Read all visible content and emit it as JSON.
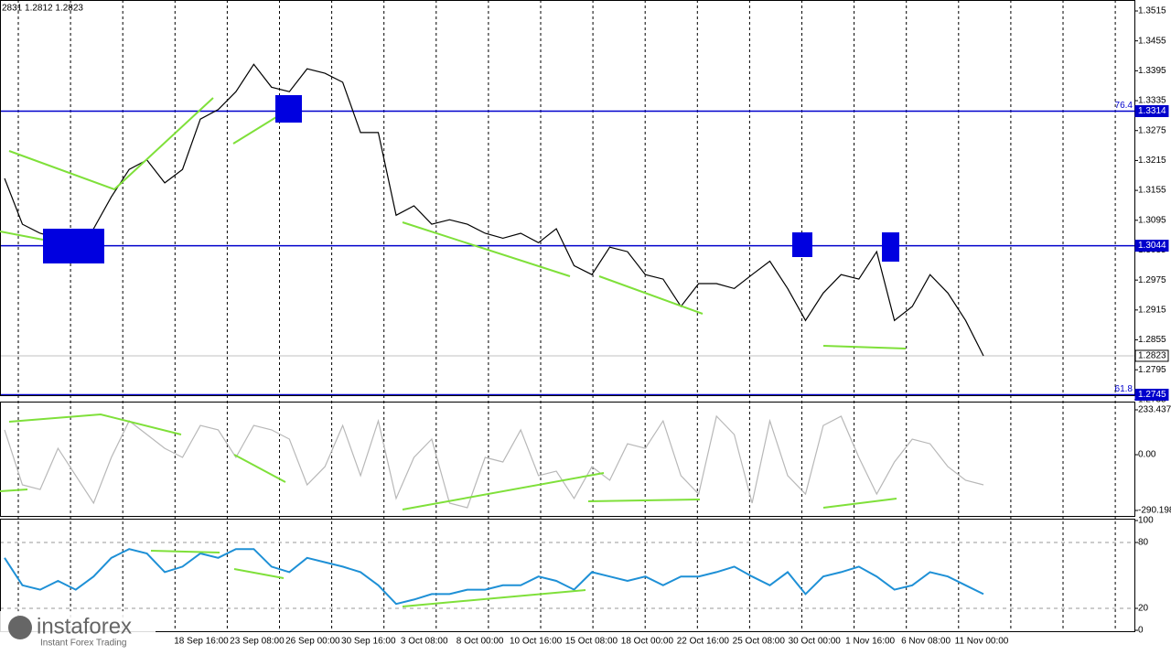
{
  "header_text": "2831 1.2812 1.2823",
  "watermark": {
    "brand": "instaforex",
    "tagline": "Instant Forex Trading"
  },
  "time_labels": [
    "18 Sep 16:00",
    "23 Sep 08:00",
    "26 Sep 00:00",
    "30 Sep 16:00",
    "3 Oct 08:00",
    "8 Oct 00:00",
    "10 Oct 16:00",
    "15 Oct 08:00",
    "18 Oct 00:00",
    "22 Oct 16:00",
    "25 Oct 08:00",
    "30 Oct 00:00",
    "1 Nov 16:00",
    "6 Nov 08:00",
    "11 Nov 00:00"
  ],
  "chart_data": [
    {
      "type": "line",
      "color": "#000000",
      "values": [
        1.3179,
        1.3087,
        1.3069,
        1.3059,
        1.3041,
        1.3078,
        1.3142,
        1.3197,
        1.3216,
        1.317,
        1.3197,
        1.3298,
        1.3317,
        1.3353,
        1.3408,
        1.3362,
        1.3353,
        1.3399,
        1.339,
        1.3372,
        1.3271,
        1.3271,
        1.3105,
        1.3124,
        1.3087,
        1.3096,
        1.3087,
        1.3069,
        1.3059,
        1.3069,
        1.305,
        1.3078,
        1.3004,
        1.2986,
        1.3041,
        1.3032,
        1.2986,
        1.2977,
        1.2922,
        1.2968,
        1.2968,
        1.2958,
        1.2986,
        1.3013,
        1.2958,
        1.2894,
        1.2949,
        1.2986,
        1.2977,
        1.3032,
        1.2894,
        1.2922,
        1.2986,
        1.2949,
        1.2894,
        1.2823
      ],
      "ylim": [
        1.2744,
        1.3537
      ],
      "yticks": [
        1.3515,
        1.3455,
        1.3395,
        1.3335,
        1.3275,
        1.3215,
        1.3155,
        1.3095,
        1.3035,
        1.2975,
        1.2915,
        1.2855,
        1.2795,
        1.2735
      ],
      "levels": [
        {
          "value": 1.3314,
          "label": "76.4",
          "color": "#0000cc"
        },
        {
          "value": 1.3044,
          "color": "#0000cc"
        },
        {
          "value": 1.2745,
          "label": "61.8",
          "color": "#0000cc"
        },
        {
          "value": 1.2823,
          "color": "#c0c0c0"
        }
      ]
    },
    {
      "type": "line",
      "color": "#b8b8b8",
      "values": [
        129,
        -157,
        -181,
        33,
        -109,
        -252,
        -14,
        176,
        105,
        33,
        -14,
        152,
        129,
        -14,
        152,
        129,
        81,
        -157,
        -62,
        152,
        -109,
        176,
        -228,
        -14,
        81,
        -252,
        -276,
        -14,
        -38,
        129,
        -109,
        -86,
        -228,
        -62,
        -133,
        57,
        33,
        176,
        -109,
        -205,
        200,
        105,
        -252,
        176,
        -109,
        -205,
        152,
        200,
        -14,
        -205,
        -38,
        81,
        57,
        -62,
        -133,
        -157
      ],
      "ylim": [
        -323.5,
        271.5
      ],
      "yticks": [
        233.4378,
        {
          "value": 0,
          "label": "0.00"
        },
        -290.1986
      ]
    },
    {
      "type": "line",
      "color": "#1e90d6",
      "values": [
        66,
        41,
        37,
        45,
        37,
        49,
        66,
        74,
        70,
        53,
        58,
        70,
        66,
        74,
        74,
        58,
        53,
        66,
        62,
        58,
        53,
        41,
        24,
        28,
        33,
        33,
        37,
        37,
        41,
        41,
        49,
        45,
        37,
        53,
        49,
        45,
        49,
        41,
        49,
        49,
        53,
        58,
        49,
        41,
        53,
        33,
        49,
        53,
        58,
        49,
        37,
        41,
        53,
        49,
        41,
        33
      ],
      "ylim": [
        0,
        100
      ],
      "yticks": [
        100,
        80,
        20,
        0
      ]
    }
  ]
}
